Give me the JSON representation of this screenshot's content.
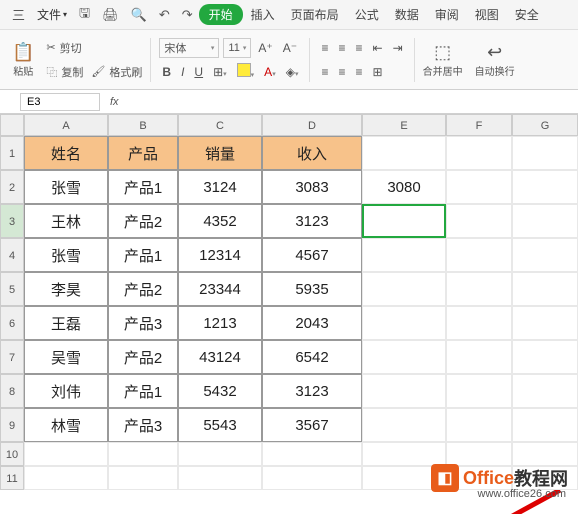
{
  "titlebar": {
    "menu": "三",
    "file": "文件",
    "start": "开始",
    "tabs": [
      "插入",
      "页面布局",
      "公式",
      "数据",
      "审阅",
      "视图",
      "安全"
    ]
  },
  "ribbon": {
    "cut": "剪切",
    "paste": "粘贴",
    "copy": "复制",
    "format_painter": "格式刷",
    "font_name": "宋体",
    "font_size": "11",
    "merge": "合并居中",
    "wrap": "自动换行"
  },
  "cellref": {
    "name": "E3"
  },
  "cols": [
    "A",
    "B",
    "C",
    "D",
    "E",
    "F",
    "G"
  ],
  "rows": [
    "1",
    "2",
    "3",
    "4",
    "5",
    "6",
    "7",
    "8",
    "9",
    "10",
    "11"
  ],
  "headers": [
    "姓名",
    "产品",
    "销量",
    "收入"
  ],
  "data": [
    [
      "张雪",
      "产品1",
      "3124",
      "3083"
    ],
    [
      "王林",
      "产品2",
      "4352",
      "3123"
    ],
    [
      "张雪",
      "产品1",
      "12314",
      "4567"
    ],
    [
      "李昊",
      "产品2",
      "23344",
      "5935"
    ],
    [
      "王磊",
      "产品3",
      "1213",
      "2043"
    ],
    [
      "吴雪",
      "产品2",
      "43124",
      "6542"
    ],
    [
      "刘伟",
      "产品1",
      "5432",
      "3123"
    ],
    [
      "林雪",
      "产品3",
      "5543",
      "3567"
    ]
  ],
  "e2_value": "3080",
  "header_color": "#f7c28a",
  "watermark": {
    "brand1": "Office",
    "brand2": "教程网",
    "url": "www.office26.com"
  },
  "selected_cell": "E3"
}
